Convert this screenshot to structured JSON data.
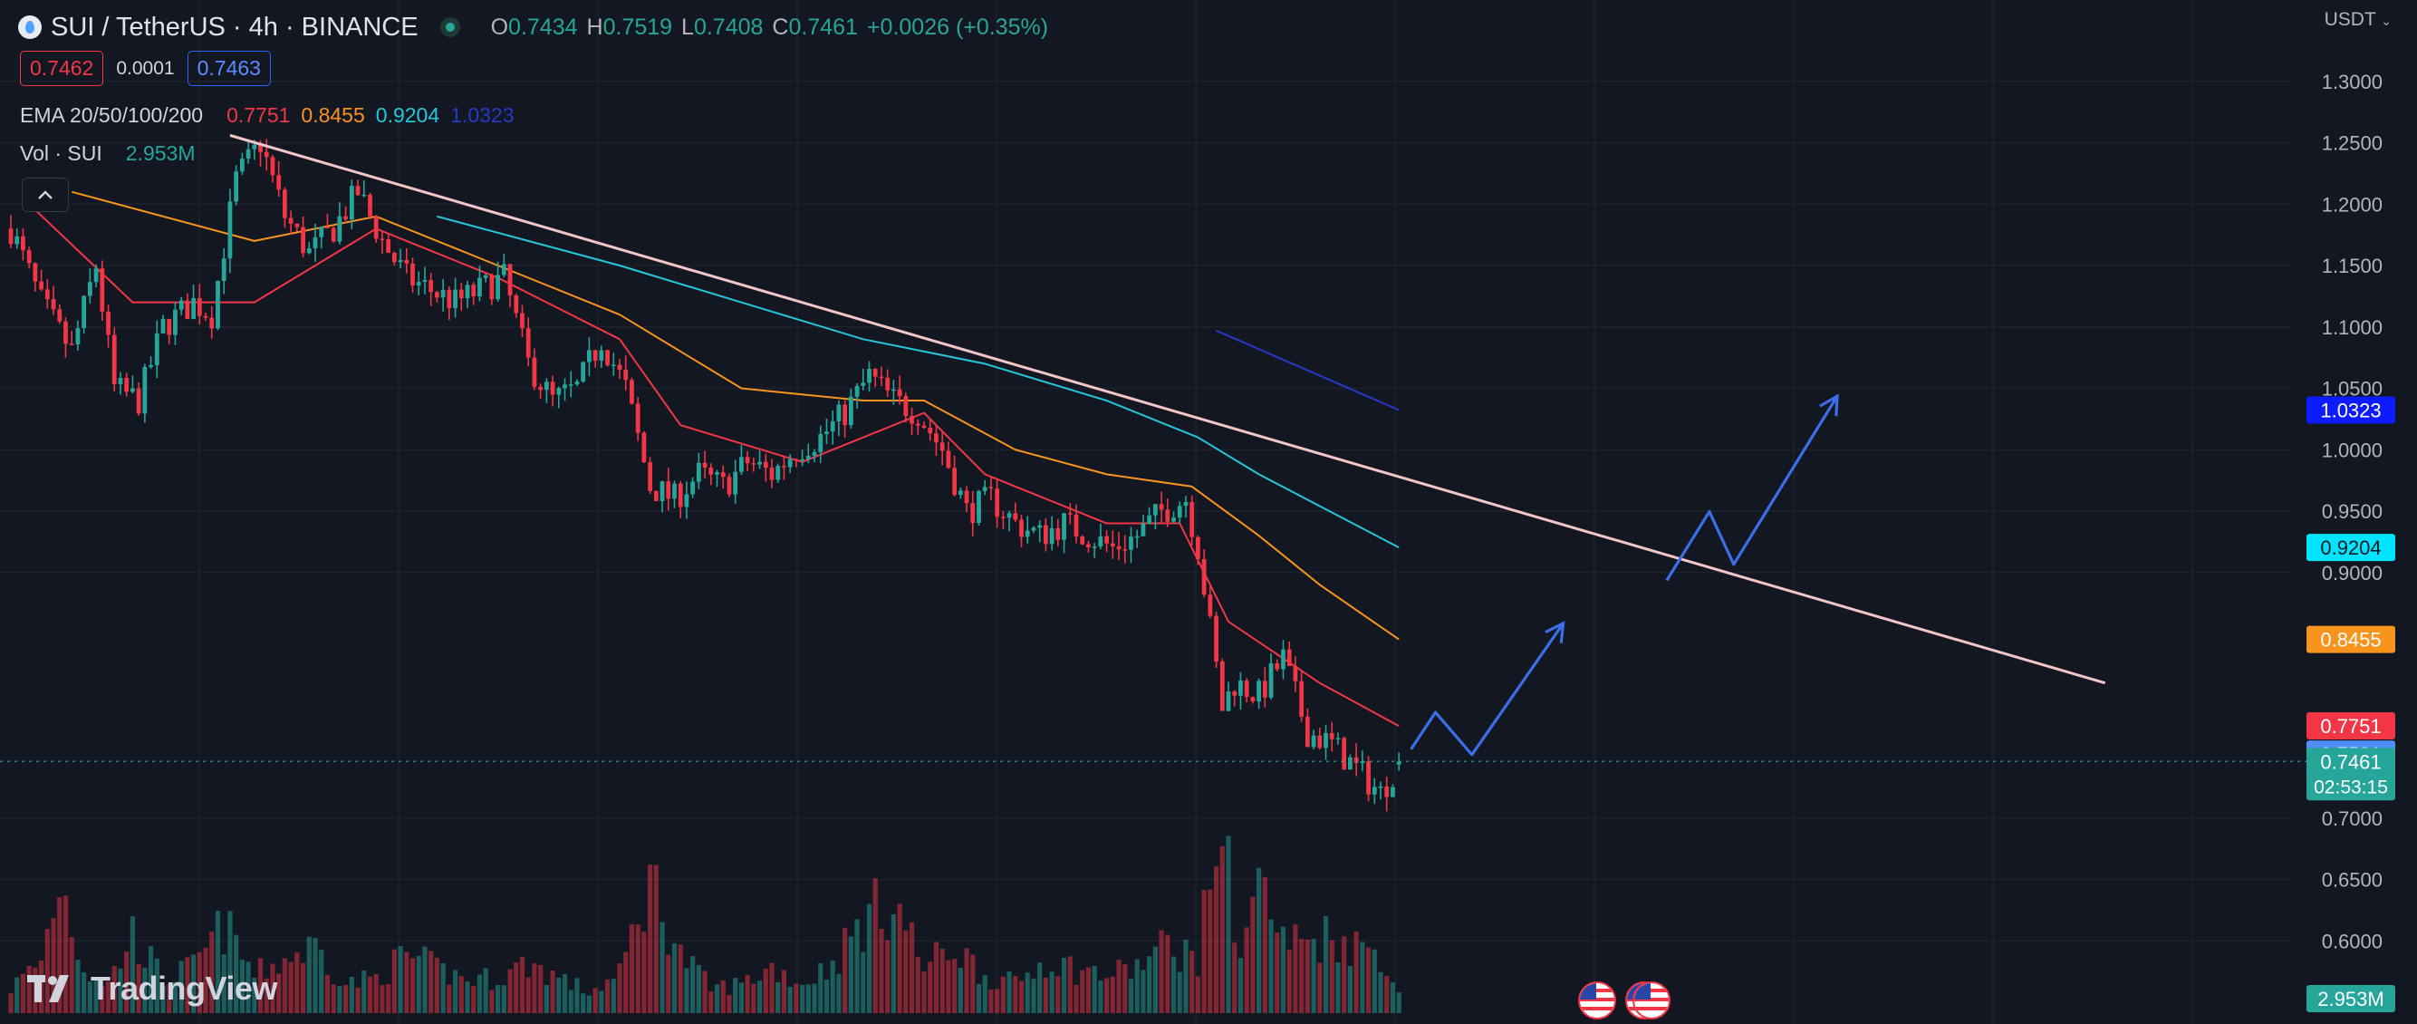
{
  "header": {
    "title": "SUI / TetherUS · 4h · BINANCE",
    "ohlc": [
      {
        "k": "O",
        "v": "0.7434"
      },
      {
        "k": "H",
        "v": "0.7519"
      },
      {
        "k": "L",
        "v": "0.7408"
      },
      {
        "k": "C",
        "v": "0.7461"
      }
    ],
    "change": "+0.0026 (+0.35%)",
    "sell_price": "0.7462",
    "spread": "0.0001",
    "buy_price": "0.7463",
    "currency": "USDT"
  },
  "indicators": {
    "ema": {
      "name": "EMA 20/50/100/200",
      "values": [
        {
          "v": "0.7751",
          "color": "#f23645"
        },
        {
          "v": "0.8455",
          "color": "#f7941d"
        },
        {
          "v": "0.9204",
          "color": "#26c6da"
        },
        {
          "v": "1.0323",
          "color": "#2838c7"
        }
      ]
    },
    "volume": {
      "name": "Vol · SUI",
      "value": "2.953M"
    }
  },
  "branding": {
    "logo_text": "TradingView"
  },
  "colors": {
    "up": "#26a69a",
    "down": "#f23645",
    "background": "#131722",
    "grid": "#1e222d"
  },
  "chart_data": {
    "type": "candlestick",
    "y_axis": {
      "min": 0.5533,
      "max": 1.35,
      "ticks": [
        "1.3000",
        "1.2500",
        "1.2000",
        "1.1500",
        "1.1000",
        "1.0500",
        "1.0000",
        "0.9500",
        "0.9000",
        "0.7000",
        "0.6500",
        "0.6000"
      ]
    },
    "price_labels": [
      {
        "v": "1.0323",
        "bg": "#0d1bff",
        "fg": "#ffffff"
      },
      {
        "v": "0.9204",
        "bg": "#00e5ff",
        "fg": "#131722"
      },
      {
        "v": "0.8455",
        "bg": "#f7941d",
        "fg": "#ffffff"
      },
      {
        "v": "0.7751",
        "bg": "#f23645",
        "fg": "#ffffff"
      },
      {
        "v": "0.7521",
        "bg": "#4f8ef7",
        "fg": "#ffffff"
      },
      {
        "v": "0.7461",
        "bg": "#26a69a",
        "fg": "#ffffff",
        "sub": "02:53:15"
      }
    ],
    "last_price": 0.7461,
    "volume_label": "2.953M",
    "anchors": [
      [
        0,
        1.18
      ],
      [
        5,
        1.12
      ],
      [
        10,
        1.08
      ],
      [
        14,
        1.15
      ],
      [
        17,
        1.05
      ],
      [
        21,
        1.04
      ],
      [
        25,
        1.1
      ],
      [
        30,
        1.12
      ],
      [
        33,
        1.11
      ],
      [
        37,
        1.22
      ],
      [
        41,
        1.25
      ],
      [
        45,
        1.19
      ],
      [
        49,
        1.16
      ],
      [
        53,
        1.18
      ],
      [
        57,
        1.21
      ],
      [
        61,
        1.17
      ],
      [
        65,
        1.14
      ],
      [
        69,
        1.13
      ],
      [
        73,
        1.12
      ],
      [
        77,
        1.13
      ],
      [
        81,
        1.14
      ],
      [
        85,
        1.07
      ],
      [
        89,
        1.04
      ],
      [
        93,
        1.05
      ],
      [
        97,
        1.09
      ],
      [
        101,
        1.05
      ],
      [
        105,
        0.97
      ],
      [
        109,
        0.96
      ],
      [
        113,
        0.98
      ],
      [
        117,
        0.97
      ],
      [
        121,
        0.99
      ],
      [
        125,
        0.98
      ],
      [
        129,
        1.0
      ],
      [
        133,
        1.01
      ],
      [
        137,
        1.03
      ],
      [
        141,
        1.06
      ],
      [
        145,
        1.04
      ],
      [
        149,
        1.03
      ],
      [
        153,
        1.0
      ],
      [
        157,
        0.95
      ],
      [
        161,
        0.96
      ],
      [
        165,
        0.94
      ],
      [
        169,
        0.93
      ],
      [
        173,
        0.94
      ],
      [
        177,
        0.93
      ],
      [
        181,
        0.92
      ],
      [
        185,
        0.93
      ],
      [
        189,
        0.95
      ],
      [
        193,
        0.96
      ],
      [
        195,
        0.92
      ],
      [
        199,
        0.79
      ],
      [
        201,
        0.81
      ],
      [
        205,
        0.8
      ],
      [
        209,
        0.83
      ],
      [
        213,
        0.77
      ],
      [
        217,
        0.76
      ],
      [
        221,
        0.74
      ],
      [
        225,
        0.72
      ],
      [
        228,
        0.7461
      ]
    ],
    "volume_anchors": [
      [
        0,
        0.12
      ],
      [
        5,
        0.25
      ],
      [
        8,
        0.65
      ],
      [
        12,
        0.22
      ],
      [
        16,
        0.14
      ],
      [
        20,
        0.38
      ],
      [
        25,
        0.16
      ],
      [
        30,
        0.22
      ],
      [
        35,
        0.42
      ],
      [
        40,
        0.18
      ],
      [
        45,
        0.26
      ],
      [
        50,
        0.32
      ],
      [
        55,
        0.14
      ],
      [
        60,
        0.17
      ],
      [
        65,
        0.28
      ],
      [
        70,
        0.21
      ],
      [
        75,
        0.16
      ],
      [
        80,
        0.17
      ],
      [
        85,
        0.24
      ],
      [
        90,
        0.17
      ],
      [
        95,
        0.1
      ],
      [
        100,
        0.18
      ],
      [
        105,
        0.65
      ],
      [
        110,
        0.28
      ],
      [
        115,
        0.12
      ],
      [
        120,
        0.14
      ],
      [
        125,
        0.22
      ],
      [
        130,
        0.14
      ],
      [
        135,
        0.24
      ],
      [
        140,
        0.44
      ],
      [
        145,
        0.55
      ],
      [
        150,
        0.22
      ],
      [
        155,
        0.32
      ],
      [
        160,
        0.18
      ],
      [
        165,
        0.14
      ],
      [
        170,
        0.26
      ],
      [
        175,
        0.21
      ],
      [
        180,
        0.18
      ],
      [
        185,
        0.22
      ],
      [
        190,
        0.33
      ],
      [
        195,
        0.26
      ],
      [
        199,
        1.0
      ],
      [
        201,
        0.3
      ],
      [
        205,
        0.64
      ],
      [
        209,
        0.34
      ],
      [
        213,
        0.35
      ],
      [
        217,
        0.38
      ],
      [
        221,
        0.32
      ],
      [
        225,
        0.3
      ],
      [
        228,
        0.08
      ]
    ],
    "n_candles": 229,
    "ema_lines": [
      {
        "color": "#f23645",
        "pts": [
          [
            3,
            1.2
          ],
          [
            20,
            1.12
          ],
          [
            40,
            1.12
          ],
          [
            60,
            1.18
          ],
          [
            80,
            1.14
          ],
          [
            100,
            1.09
          ],
          [
            110,
            1.02
          ],
          [
            130,
            0.99
          ],
          [
            140,
            1.01
          ],
          [
            150,
            1.03
          ],
          [
            160,
            0.98
          ],
          [
            180,
            0.94
          ],
          [
            192,
            0.94
          ],
          [
            200,
            0.86
          ],
          [
            215,
            0.81
          ],
          [
            228,
            0.775
          ]
        ]
      },
      {
        "color": "#f7941d",
        "pts": [
          [
            10,
            1.21
          ],
          [
            40,
            1.17
          ],
          [
            60,
            1.19
          ],
          [
            80,
            1.15
          ],
          [
            100,
            1.11
          ],
          [
            120,
            1.05
          ],
          [
            140,
            1.04
          ],
          [
            150,
            1.04
          ],
          [
            165,
            1.0
          ],
          [
            180,
            0.98
          ],
          [
            194,
            0.97
          ],
          [
            205,
            0.93
          ],
          [
            215,
            0.89
          ],
          [
            228,
            0.8455
          ]
        ]
      },
      {
        "color": "#26c6da",
        "pts": [
          [
            70,
            1.19
          ],
          [
            100,
            1.15
          ],
          [
            120,
            1.12
          ],
          [
            140,
            1.09
          ],
          [
            160,
            1.07
          ],
          [
            180,
            1.04
          ],
          [
            195,
            1.01
          ],
          [
            205,
            0.98
          ],
          [
            228,
            0.9204
          ]
        ]
      },
      {
        "color": "#2838c7",
        "pts": [
          [
            198,
            1.097
          ],
          [
            228,
            1.0323
          ]
        ]
      }
    ],
    "trendline": {
      "color": "#f2c6c6",
      "pts": [
        [
          36,
          1.256
        ],
        [
          344,
          0.81
        ]
      ]
    },
    "projections": [
      {
        "color": "#3b6fe8",
        "pts": [
          [
            230,
            0.7561
          ],
          [
            234,
            0.7861
          ],
          [
            240,
            0.7516
          ],
          [
            255,
            0.8586
          ]
        ]
      },
      {
        "color": "#3b6fe8",
        "pts": [
          [
            272,
            0.8936
          ],
          [
            279,
            0.9496
          ],
          [
            283,
            0.9066
          ],
          [
            300,
            1.0436
          ]
        ]
      }
    ]
  }
}
